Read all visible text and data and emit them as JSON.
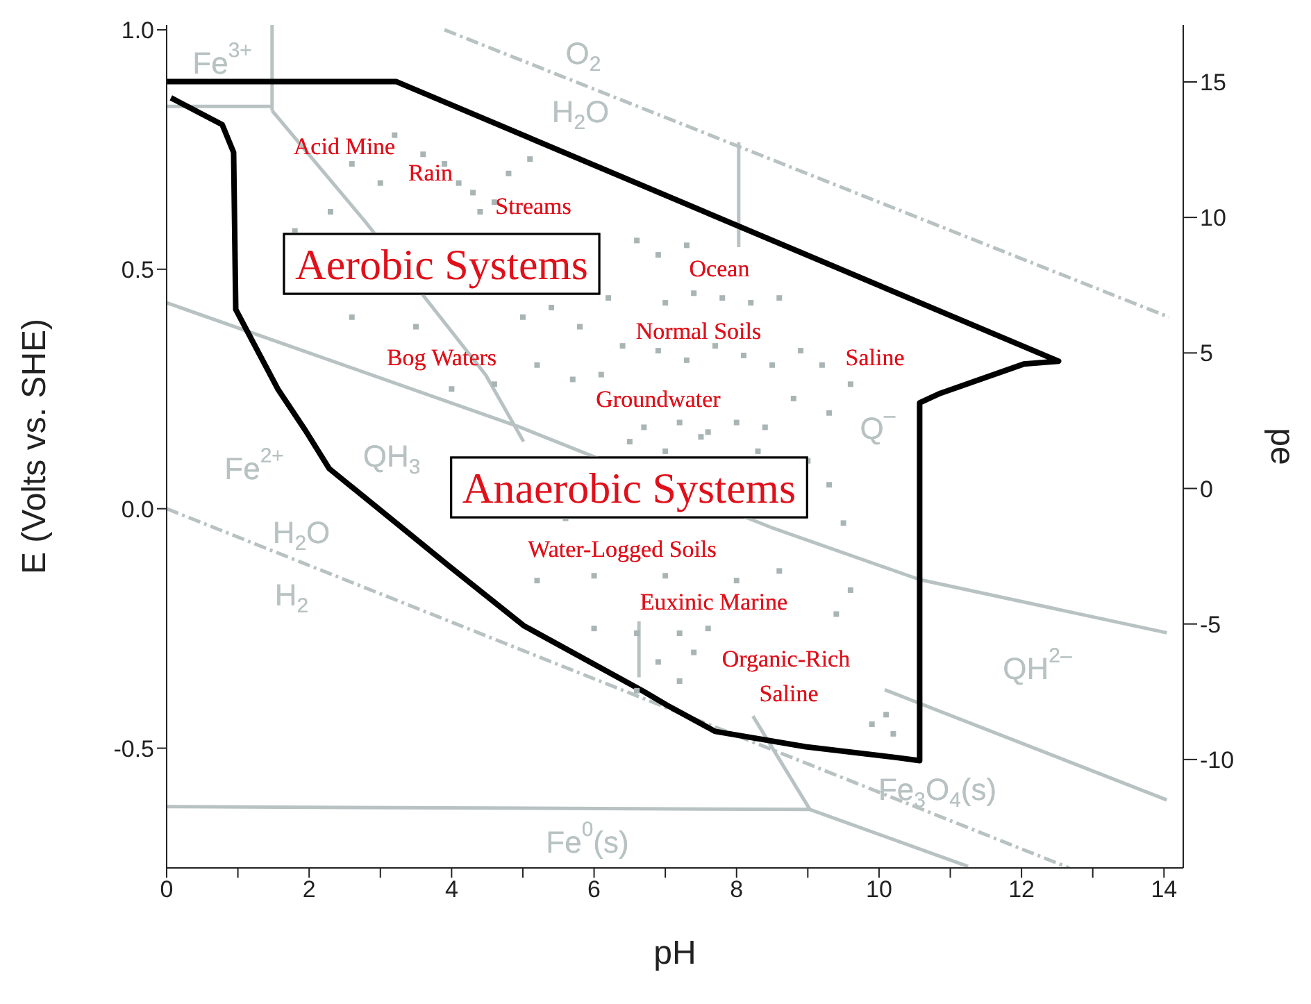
{
  "chart_data": {
    "type": "line",
    "xlabel": "pH",
    "ylabel": "E (Volts vs. SHE)",
    "y2label": "pe",
    "xlim": [
      0,
      14.27
    ],
    "xticks": [
      0,
      {
        "value": 1,
        "label": null
      },
      2,
      {
        "value": 3,
        "label": null
      },
      4,
      {
        "value": 5,
        "label": null
      },
      6,
      {
        "value": 7,
        "label": null
      },
      8,
      {
        "value": 9,
        "label": null
      },
      10,
      {
        "value": 11,
        "label": null
      },
      12,
      {
        "value": 13,
        "label": null
      },
      14
    ],
    "ylim": [
      -0.75,
      1.01
    ],
    "yticks": [
      {
        "value": -0.5,
        "label": "-0.5"
      },
      {
        "value": 0,
        "label": "0.0"
      },
      {
        "value": 0.5,
        "label": "0.5"
      },
      {
        "value": 1,
        "label": "1.0"
      }
    ],
    "y2lim": [
      -14.0,
      17.1
    ],
    "y2ticks": [
      -10,
      -5,
      0,
      5,
      10,
      15
    ],
    "grid": false,
    "legend": false,
    "series": [
      {
        "type": "line",
        "color": "#b8c2c2",
        "line_style": "dashed",
        "marker": "none",
        "x": [
          3.9,
          14.07
        ],
        "values": [
          1.0,
          0.4
        ]
      },
      {
        "type": "line",
        "color": "#b8c2c2",
        "line_style": "dashed",
        "marker": "none",
        "x": [
          0,
          12.67
        ],
        "values": [
          0,
          -0.75
        ]
      },
      {
        "type": "line",
        "color": "#b8c2c2",
        "line_style": "solid",
        "marker": "none",
        "x": [
          1.48,
          1.48
        ],
        "values": [
          1.01,
          0.831
        ]
      },
      {
        "type": "line",
        "color": "#b8c2c2",
        "line_style": "solid",
        "marker": "none",
        "x": [
          0,
          1.48
        ],
        "values": [
          0.84,
          0.84
        ]
      },
      {
        "type": "line",
        "color": "#b8c2c2",
        "line_style": "solid",
        "marker": "none",
        "x": [
          1.48,
          2.79,
          4.48,
          5.01
        ],
        "values": [
          0.831,
          0.599,
          0.279,
          0.14
        ]
      },
      {
        "type": "line",
        "color": "#b8c2c2",
        "line_style": "solid",
        "marker": "none",
        "x": [
          0,
          4.93,
          8.52,
          10.57,
          14.04
        ],
        "values": [
          0.43,
          0.172,
          -0.041,
          -0.148,
          -0.259
        ]
      },
      {
        "type": "line",
        "color": "#b8c2c2",
        "line_style": "solid",
        "marker": "none",
        "x": [
          8.03,
          8.03
        ],
        "values": [
          0.765,
          0.546
        ]
      },
      {
        "type": "line",
        "color": "#b8c2c2",
        "line_style": "solid",
        "marker": "none",
        "x": [
          6.63,
          6.63
        ],
        "values": [
          -0.235,
          -0.352
        ]
      },
      {
        "type": "line",
        "color": "#b8c2c2",
        "line_style": "solid",
        "marker": "none",
        "x": [
          10.08,
          14.04
        ],
        "values": [
          -0.378,
          -0.608
        ]
      },
      {
        "type": "line",
        "color": "#b8c2c2",
        "line_style": "solid",
        "marker": "none",
        "x": [
          0,
          9.03,
          11.25
        ],
        "values": [
          -0.622,
          -0.628,
          -0.747
        ]
      },
      {
        "type": "line",
        "color": "#b8c2c2",
        "line_style": "solid",
        "marker": "none",
        "x": [
          8.23,
          9.03
        ],
        "values": [
          -0.433,
          -0.628
        ]
      },
      {
        "type": "scatter",
        "color": "#a9b5b5",
        "marker": "square",
        "x": [
          3.2,
          3.6,
          3.9,
          4.1,
          4.3,
          4.4,
          4.6,
          4.8,
          5.1,
          3.0,
          2.6,
          2.3,
          1.8,
          6.6,
          6.9,
          7.3,
          5.0,
          5.4,
          5.8,
          6.2,
          7.0,
          7.4,
          7.8,
          8.2,
          8.6,
          6.4,
          6.9,
          7.3,
          7.7,
          8.1,
          8.5,
          8.9,
          9.2,
          4.6,
          5.2,
          5.7,
          6.1,
          6.7,
          7.2,
          7.6,
          8.0,
          8.4,
          8.8,
          9.3,
          9.6,
          3.5,
          2.6,
          4.0,
          6.5,
          7.0,
          7.5,
          8.3,
          9.0,
          5.2,
          5.6,
          9.3,
          9.5,
          8.6,
          6.0,
          7.0,
          8.0,
          6.0,
          6.6,
          7.2,
          7.6,
          6.9,
          7.4,
          6.6,
          7.2,
          9.9,
          10.1,
          10.2,
          9.4,
          9.6
        ],
        "values": [
          0.78,
          0.74,
          0.72,
          0.68,
          0.66,
          0.62,
          0.64,
          0.7,
          0.73,
          0.68,
          0.72,
          0.62,
          0.58,
          0.56,
          0.53,
          0.55,
          0.4,
          0.42,
          0.38,
          0.44,
          0.43,
          0.45,
          0.44,
          0.43,
          0.44,
          0.34,
          0.33,
          0.31,
          0.34,
          0.32,
          0.3,
          0.33,
          0.3,
          0.26,
          0.3,
          0.27,
          0.28,
          0.17,
          0.18,
          0.16,
          0.18,
          0.17,
          0.23,
          0.2,
          0.26,
          0.38,
          0.4,
          0.25,
          0.14,
          0.12,
          0.15,
          0.12,
          0.1,
          -0.15,
          -0.02,
          0.05,
          -0.03,
          -0.13,
          -0.14,
          -0.14,
          -0.15,
          -0.25,
          -0.26,
          -0.26,
          -0.25,
          -0.32,
          -0.3,
          -0.38,
          -0.36,
          -0.45,
          -0.43,
          -0.47,
          -0.22,
          -0.17
        ]
      },
      {
        "type": "line",
        "color": "#000000",
        "line_style": "solid",
        "marker": "none",
        "x": [
          0,
          3.22,
          12.52,
          12.03,
          10.86,
          10.57,
          10.57,
          10.27,
          8.97,
          7.7,
          7.02,
          6.69,
          5.01,
          3.96,
          2.28,
          1.95,
          1.56,
          0.97,
          0.94,
          0.78,
          0.06
        ],
        "values": [
          0.892,
          0.892,
          0.308,
          0.302,
          0.241,
          0.221,
          -0.526,
          -0.52,
          -0.497,
          -0.465,
          -0.41,
          -0.381,
          -0.244,
          -0.119,
          0.084,
          0.163,
          0.25,
          0.416,
          0.744,
          0.802,
          0.858
        ]
      }
    ],
    "annotations": [
      "Fe$^{3+}$",
      "O$_{2}$",
      "H$_{2}$O",
      "Q$^{–}$",
      "Fe$^{2+}$",
      "QH$_{3}$",
      "H$_{2}$O",
      "H$_{2}$",
      "QH$^{2–}$",
      "Fe$_{3}$O$_{4}$(s)",
      "Fe$^{0}$(s)",
      "Acid Mine",
      "Rain",
      "Streams",
      "Ocean",
      "Normal Soils",
      "Saline",
      "Bog Waters",
      "Groundwater",
      "Water-Logged Soils",
      "Euxinic Marine",
      "Organic-Rich",
      "Saline",
      "Aerobic Systems",
      "Anaerobic Systems"
    ]
  }
}
